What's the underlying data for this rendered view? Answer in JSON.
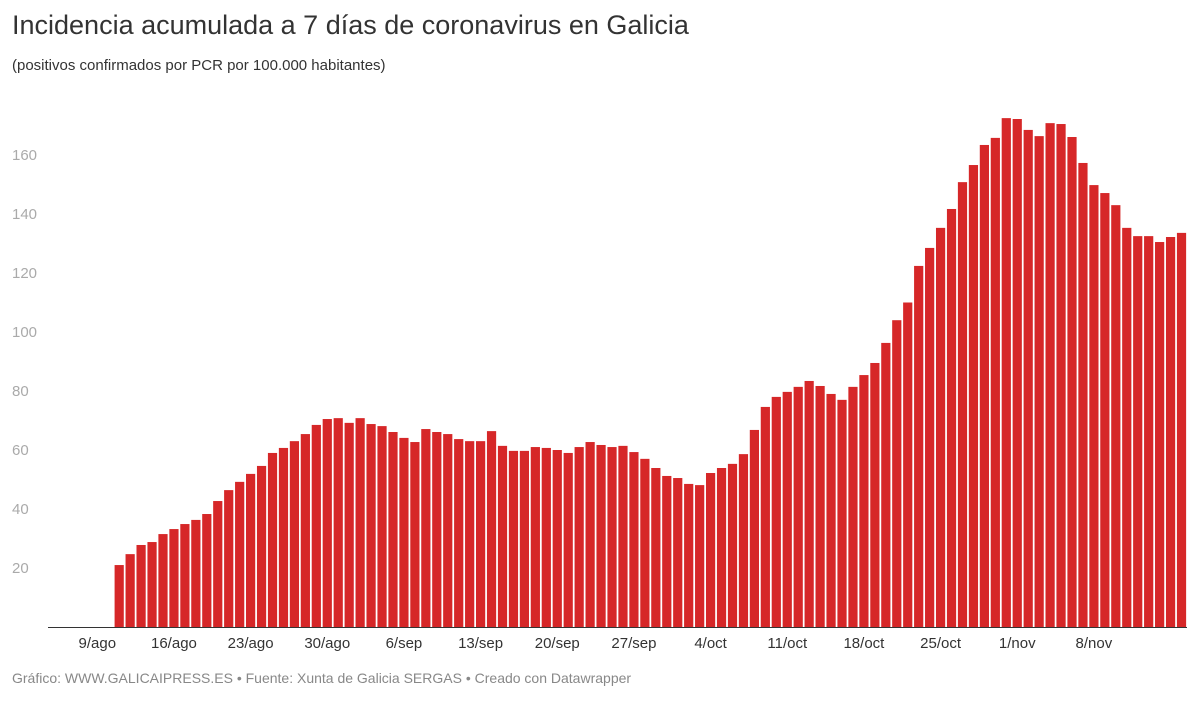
{
  "chart_data": {
    "type": "bar",
    "title": "Incidencia acumulada a 7 días de coronavirus en Galicia",
    "subtitle": "(positivos confirmados por PCR por 100.000 habitantes)",
    "footer": "Gráfico: WWW.GALICAIPRESS.ES • Fuente: Xunta de Galicia SERGAS • Creado con Datawrapper",
    "bar_color": "#d62728",
    "ylim": [
      0,
      180
    ],
    "yticks": [
      20,
      40,
      60,
      80,
      100,
      120,
      140,
      160
    ],
    "xtick_labels": [
      "9/ago",
      "16/ago",
      "23/ago",
      "30/ago",
      "6/sep",
      "13/sep",
      "20/sep",
      "27/sep",
      "4/oct",
      "11/oct",
      "18/oct",
      "25/oct",
      "1/nov",
      "8/nov"
    ],
    "grid": false,
    "categories": [
      "5/ago",
      "6/ago",
      "7/ago",
      "8/ago",
      "9/ago",
      "10/ago",
      "11/ago",
      "12/ago",
      "13/ago",
      "14/ago",
      "15/ago",
      "16/ago",
      "17/ago",
      "18/ago",
      "19/ago",
      "20/ago",
      "21/ago",
      "22/ago",
      "23/ago",
      "24/ago",
      "25/ago",
      "26/ago",
      "27/ago",
      "28/ago",
      "29/ago",
      "30/ago",
      "31/ago",
      "1/sep",
      "2/sep",
      "3/sep",
      "4/sep",
      "5/sep",
      "6/sep",
      "7/sep",
      "8/sep",
      "9/sep",
      "10/sep",
      "11/sep",
      "12/sep",
      "13/sep",
      "14/sep",
      "15/sep",
      "16/sep",
      "17/sep",
      "18/sep",
      "19/sep",
      "20/sep",
      "21/sep",
      "22/sep",
      "23/sep",
      "24/sep",
      "25/sep",
      "26/sep",
      "27/sep",
      "28/sep",
      "29/sep",
      "30/sep",
      "1/oct",
      "2/oct",
      "3/oct",
      "4/oct",
      "5/oct",
      "6/oct",
      "7/oct",
      "8/oct",
      "9/oct",
      "10/oct",
      "11/oct",
      "12/oct",
      "13/oct",
      "14/oct",
      "15/oct",
      "16/oct",
      "17/oct",
      "18/oct",
      "19/oct",
      "20/oct",
      "21/oct",
      "22/oct",
      "23/oct",
      "24/oct",
      "25/oct",
      "26/oct",
      "27/oct",
      "28/oct",
      "29/oct",
      "30/oct",
      "31/oct",
      "1/nov",
      "2/nov",
      "3/nov",
      "4/nov",
      "5/nov",
      "6/nov",
      "7/nov",
      "8/nov",
      "9/nov",
      "10/nov",
      "11/nov",
      "12/nov",
      "13/nov",
      "14/nov",
      "15/nov",
      "16/nov"
    ],
    "values": [
      null,
      null,
      null,
      null,
      null,
      null,
      21,
      24.7,
      27.8,
      28.8,
      31.5,
      33.2,
      34.9,
      36.3,
      38.3,
      42.7,
      46.4,
      49.2,
      51.9,
      54.6,
      59,
      60.7,
      63,
      65.4,
      68.5,
      70.5,
      70.8,
      69.2,
      70.8,
      68.8,
      68.1,
      66.1,
      64.1,
      62.7,
      67.1,
      66.1,
      65.4,
      63.7,
      63,
      63,
      66.4,
      61.4,
      59.7,
      59.7,
      61,
      60.7,
      60,
      59,
      61,
      62.7,
      61.7,
      61,
      61.4,
      59.3,
      57,
      53.9,
      51.2,
      50.5,
      48.5,
      48.1,
      52.2,
      53.9,
      55.3,
      58.6,
      66.8,
      74.6,
      78,
      79.7,
      81.4,
      83.4,
      81.7,
      79,
      77,
      81.4,
      85.4,
      89.5,
      96.3,
      104,
      110,
      122.4,
      128.5,
      135.3,
      141.7,
      150.8,
      156.6,
      163.4,
      165.8,
      172.5,
      172.2,
      168.5,
      166.4,
      170.8,
      170.5,
      166.1,
      157.3,
      149.8,
      147.1,
      143,
      135.3,
      132.5,
      132.5,
      130.5,
      132.2,
      133.6
    ]
  }
}
